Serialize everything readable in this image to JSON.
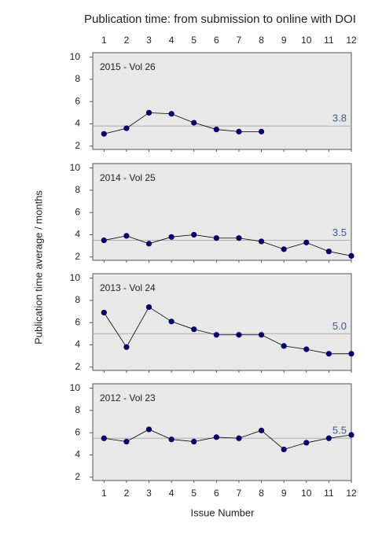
{
  "title": "Publication time: from submission to online with DOI",
  "ylabel": "Publication time average / months",
  "xlabel": "Issue Number",
  "chart_data": [
    {
      "type": "line",
      "label": "2015 - Vol 26",
      "color": "#000066",
      "xlim": [
        0.5,
        12
      ],
      "xticks": [
        1,
        2,
        3,
        4,
        5,
        6,
        7,
        8,
        9,
        10,
        11,
        12
      ],
      "ylim": [
        1.7,
        10.4
      ],
      "yticks": [
        2,
        4,
        6,
        8,
        10
      ],
      "x": [
        1,
        2,
        3,
        4,
        5,
        6,
        7,
        8,
        9,
        10,
        11,
        12
      ],
      "values": [
        3.1,
        3.6,
        5.0,
        4.9,
        4.1,
        3.5,
        3.3,
        3.3,
        null,
        null,
        null,
        null
      ],
      "reference_line": {
        "value": 3.8,
        "label": "3.8"
      }
    },
    {
      "type": "line",
      "label": "2014 - Vol 25",
      "color": "#000066",
      "xlim": [
        0.5,
        12
      ],
      "xticks": [
        1,
        2,
        3,
        4,
        5,
        6,
        7,
        8,
        9,
        10,
        11,
        12
      ],
      "ylim": [
        1.7,
        10.4
      ],
      "yticks": [
        2,
        4,
        6,
        8,
        10
      ],
      "x": [
        1,
        2,
        3,
        4,
        5,
        6,
        7,
        8,
        9,
        10,
        11,
        12
      ],
      "values": [
        3.5,
        3.9,
        3.2,
        3.8,
        4.0,
        3.7,
        3.7,
        3.4,
        2.7,
        3.3,
        2.5,
        2.1
      ],
      "reference_line": {
        "value": 3.5,
        "label": "3.5"
      }
    },
    {
      "type": "line",
      "label": "2013 - Vol 24",
      "color": "#000066",
      "xlim": [
        0.5,
        12
      ],
      "xticks": [
        1,
        2,
        3,
        4,
        5,
        6,
        7,
        8,
        9,
        10,
        11,
        12
      ],
      "ylim": [
        1.7,
        10.4
      ],
      "yticks": [
        2,
        4,
        6,
        8,
        10
      ],
      "x": [
        1,
        2,
        3,
        4,
        5,
        6,
        7,
        8,
        9,
        10,
        11,
        12
      ],
      "values": [
        6.9,
        3.8,
        7.4,
        6.1,
        5.4,
        4.9,
        4.9,
        4.9,
        3.9,
        3.6,
        3.2,
        3.2
      ],
      "reference_line": {
        "value": 5,
        "label": "5.0"
      }
    },
    {
      "type": "line",
      "label": "2012 - Vol 23",
      "color": "#000066",
      "xlim": [
        0.5,
        12
      ],
      "xticks": [
        1,
        2,
        3,
        4,
        5,
        6,
        7,
        8,
        9,
        10,
        11,
        12
      ],
      "ylim": [
        1.7,
        10.4
      ],
      "yticks": [
        2,
        4,
        6,
        8,
        10
      ],
      "x": [
        1,
        2,
        3,
        4,
        5,
        6,
        7,
        8,
        9,
        10,
        11,
        12
      ],
      "values": [
        5.5,
        5.2,
        6.3,
        5.4,
        5.2,
        5.6,
        5.5,
        6.2,
        4.5,
        5.1,
        5.5,
        5.8
      ],
      "reference_line": {
        "value": 5.5,
        "label": "5.5"
      }
    }
  ]
}
